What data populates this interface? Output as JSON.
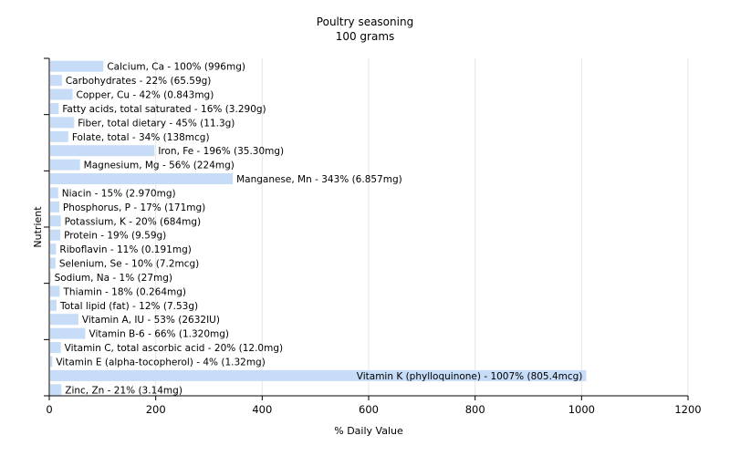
{
  "chart_data": {
    "type": "bar",
    "orientation": "horizontal",
    "title": "Poultry seasoning",
    "subtitle": "100 grams",
    "xlabel": "% Daily Value",
    "ylabel": "Nutrient",
    "xlim": [
      0,
      1200
    ],
    "xticks": [
      0,
      200,
      400,
      600,
      800,
      1000,
      1200
    ],
    "grid": true,
    "bar_color": "#c6dcf7",
    "categories": [
      "Calcium, Ca",
      "Carbohydrates",
      "Copper, Cu",
      "Fatty acids, total saturated",
      "Fiber, total dietary",
      "Folate, total",
      "Iron, Fe",
      "Magnesium, Mg",
      "Manganese, Mn",
      "Niacin",
      "Phosphorus, P",
      "Potassium, K",
      "Protein",
      "Riboflavin",
      "Selenium, Se",
      "Sodium, Na",
      "Thiamin",
      "Total lipid (fat)",
      "Vitamin A, IU",
      "Vitamin B-6",
      "Vitamin C, total ascorbic acid",
      "Vitamin E (alpha-tocopherol)",
      "Vitamin K (phylloquinone)",
      "Zinc, Zn"
    ],
    "values": [
      100,
      22,
      42,
      16,
      45,
      34,
      196,
      56,
      343,
      15,
      17,
      20,
      19,
      11,
      10,
      1,
      18,
      12,
      53,
      66,
      20,
      4,
      1007,
      21
    ],
    "labels": [
      "Calcium, Ca - 100% (996mg)",
      "Carbohydrates - 22% (65.59g)",
      "Copper, Cu - 42% (0.843mg)",
      "Fatty acids, total saturated - 16% (3.290g)",
      "Fiber, total dietary - 45% (11.3g)",
      "Folate, total - 34% (138mcg)",
      "Iron, Fe - 196% (35.30mg)",
      "Magnesium, Mg - 56% (224mg)",
      "Manganese, Mn - 343% (6.857mg)",
      "Niacin - 15% (2.970mg)",
      "Phosphorus, P - 17% (171mg)",
      "Potassium, K - 20% (684mg)",
      "Protein - 19% (9.59g)",
      "Riboflavin - 11% (0.191mg)",
      "Selenium, Se - 10% (7.2mcg)",
      "Sodium, Na - 1% (27mg)",
      "Thiamin - 18% (0.264mg)",
      "Total lipid (fat) - 12% (7.53g)",
      "Vitamin A, IU - 53% (2632IU)",
      "Vitamin B-6 - 66% (1.320mg)",
      "Vitamin C, total ascorbic acid - 20% (12.0mg)",
      "Vitamin E (alpha-tocopherol) - 4% (1.32mg)",
      "Vitamin K (phylloquinone) - 1007% (805.4mcg)",
      "Zinc, Zn - 21% (3.14mg)"
    ]
  }
}
